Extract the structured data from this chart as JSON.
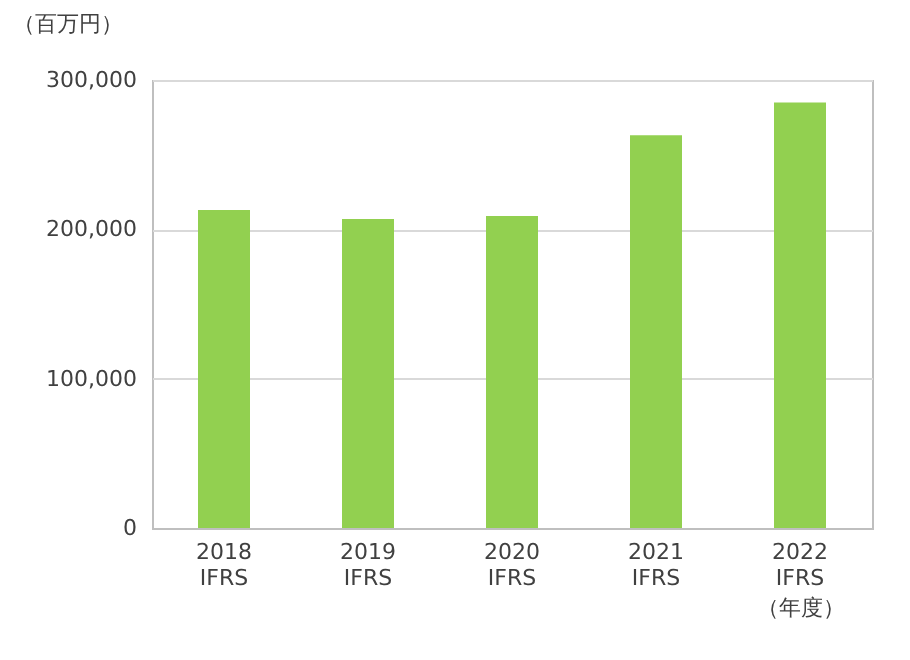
{
  "chart_data": {
    "type": "bar",
    "ylabel": "（百万円）",
    "xlabel": "（年度）",
    "categories": [
      "2018\nIFRS",
      "2019\nIFRS",
      "2020\nIFRS",
      "2021\nIFRS",
      "2022\nIFRS"
    ],
    "values": [
      213000,
      207000,
      209000,
      263000,
      285000
    ],
    "color": "#92d050",
    "ylim": [
      0,
      300000
    ],
    "yticks": [
      {
        "value": 0,
        "label": "0"
      },
      {
        "value": 100000,
        "label": "100,000"
      },
      {
        "value": 200000,
        "label": "200,000"
      },
      {
        "value": 300000,
        "label": "300,000"
      }
    ],
    "grid": "y"
  }
}
